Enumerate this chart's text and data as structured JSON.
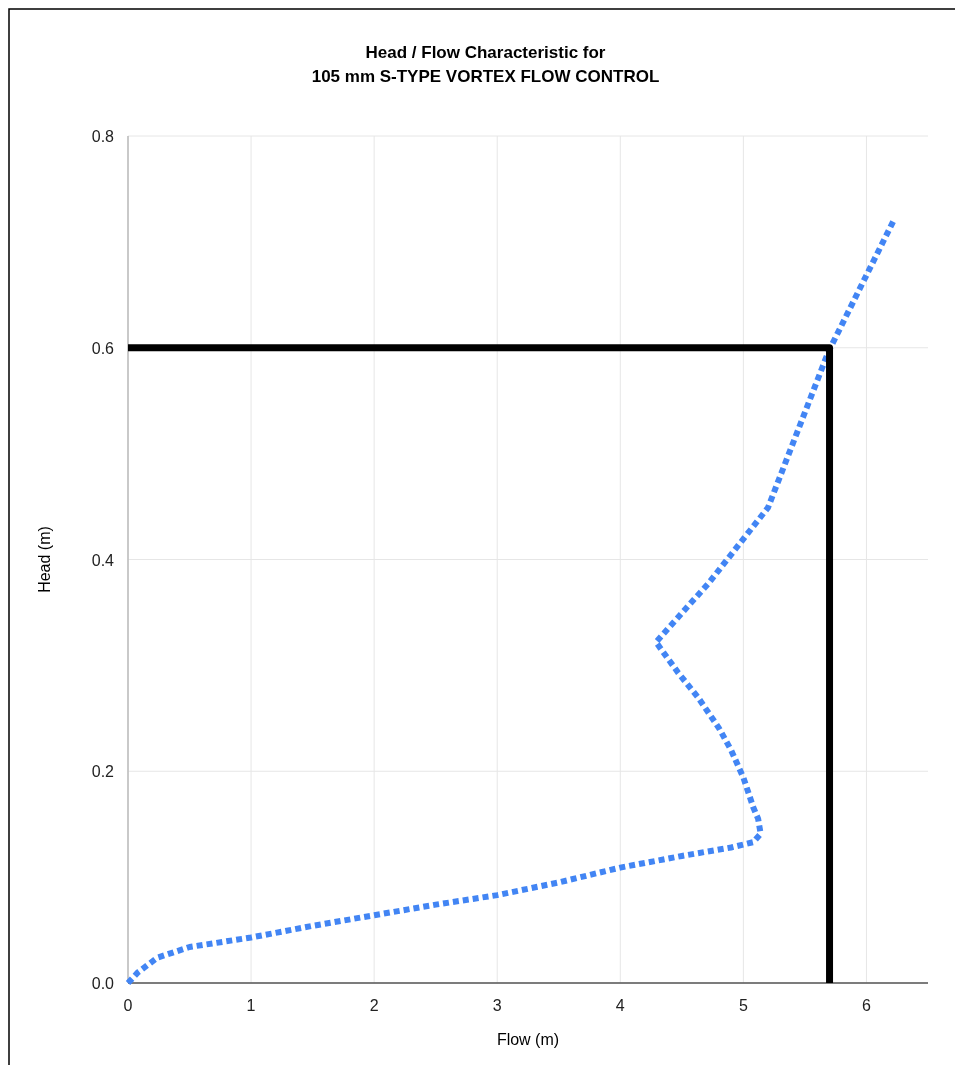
{
  "chart_data": {
    "type": "line",
    "title": "Head / Flow Characteristic for",
    "subtitle": "105 mm S-TYPE VORTEX FLOW CONTROL",
    "xlabel": "Flow (m)",
    "ylabel": "Head (m)",
    "xlim": [
      0,
      6.5
    ],
    "xticks": [
      0,
      1,
      2,
      3,
      4,
      5,
      6
    ],
    "ylim": [
      0,
      0.8
    ],
    "yticks": [
      {
        "value": 0,
        "label": "0.0"
      },
      0.2,
      0.4,
      0.6,
      0.8
    ],
    "grid": true,
    "marker": "none",
    "series": [
      {
        "color": "#4285f4",
        "line_style": "dotted",
        "x": [
          0,
          0.08,
          0.24,
          0.5,
          1,
          1.5,
          2,
          2.5,
          3,
          3.5,
          4,
          4.5,
          4.9,
          5.08,
          5.14,
          5.12,
          5.08,
          5.0,
          4.9,
          4.8,
          4.63,
          4.47,
          4.29,
          4.72,
          5.2,
          5.69,
          6.22
        ],
        "values": [
          0,
          0.01,
          0.024,
          0.034,
          0.043,
          0.054,
          0.064,
          0.074,
          0.083,
          0.095,
          0.109,
          0.12,
          0.128,
          0.133,
          0.141,
          0.155,
          0.166,
          0.194,
          0.22,
          0.241,
          0.27,
          0.293,
          0.322,
          0.378,
          0.449,
          0.596,
          0.72
        ]
      },
      {
        "color": "#000000",
        "line_style": "solid",
        "x": [
          0,
          5.7,
          5.7
        ],
        "values": [
          0.6,
          0.6,
          0
        ]
      }
    ]
  }
}
